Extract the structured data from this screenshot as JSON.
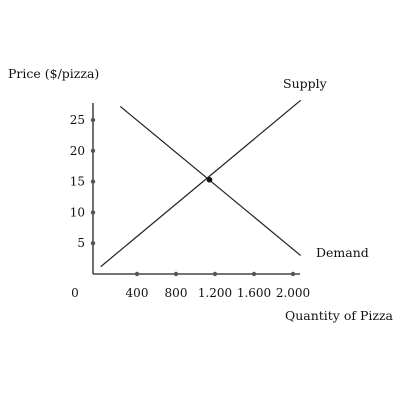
{
  "chart_data": {
    "type": "line",
    "title": "",
    "xlabel": "Quantity of Pizza",
    "ylabel": "Price ($/pizza)",
    "origin_label": "0",
    "xlim": [
      0,
      2000
    ],
    "ylim": [
      0,
      27
    ],
    "x_ticks": [
      {
        "value": 400,
        "label": "400"
      },
      {
        "value": 800,
        "label": "800"
      },
      {
        "value": 1200,
        "label": "1.200"
      },
      {
        "value": 1600,
        "label": "1.600"
      },
      {
        "value": 2000,
        "label": "2.000"
      }
    ],
    "y_ticks": [
      {
        "value": 5,
        "label": "5"
      },
      {
        "value": 10,
        "label": "10"
      },
      {
        "value": 15,
        "label": "15"
      },
      {
        "value": 20,
        "label": "20"
      },
      {
        "value": 25,
        "label": "25"
      }
    ],
    "grid": false,
    "legend": "none",
    "series": [
      {
        "name": "Supply",
        "x": [
          80,
          2130
        ],
        "y": [
          1.2,
          28.2
        ]
      },
      {
        "name": "Demand",
        "x": [
          280,
          2130
        ],
        "y": [
          27.2,
          3.0
        ]
      }
    ],
    "equilibrium": {
      "x": 1200,
      "y": 15.3
    },
    "line_color": "#222222",
    "marker_color": "#555555"
  }
}
